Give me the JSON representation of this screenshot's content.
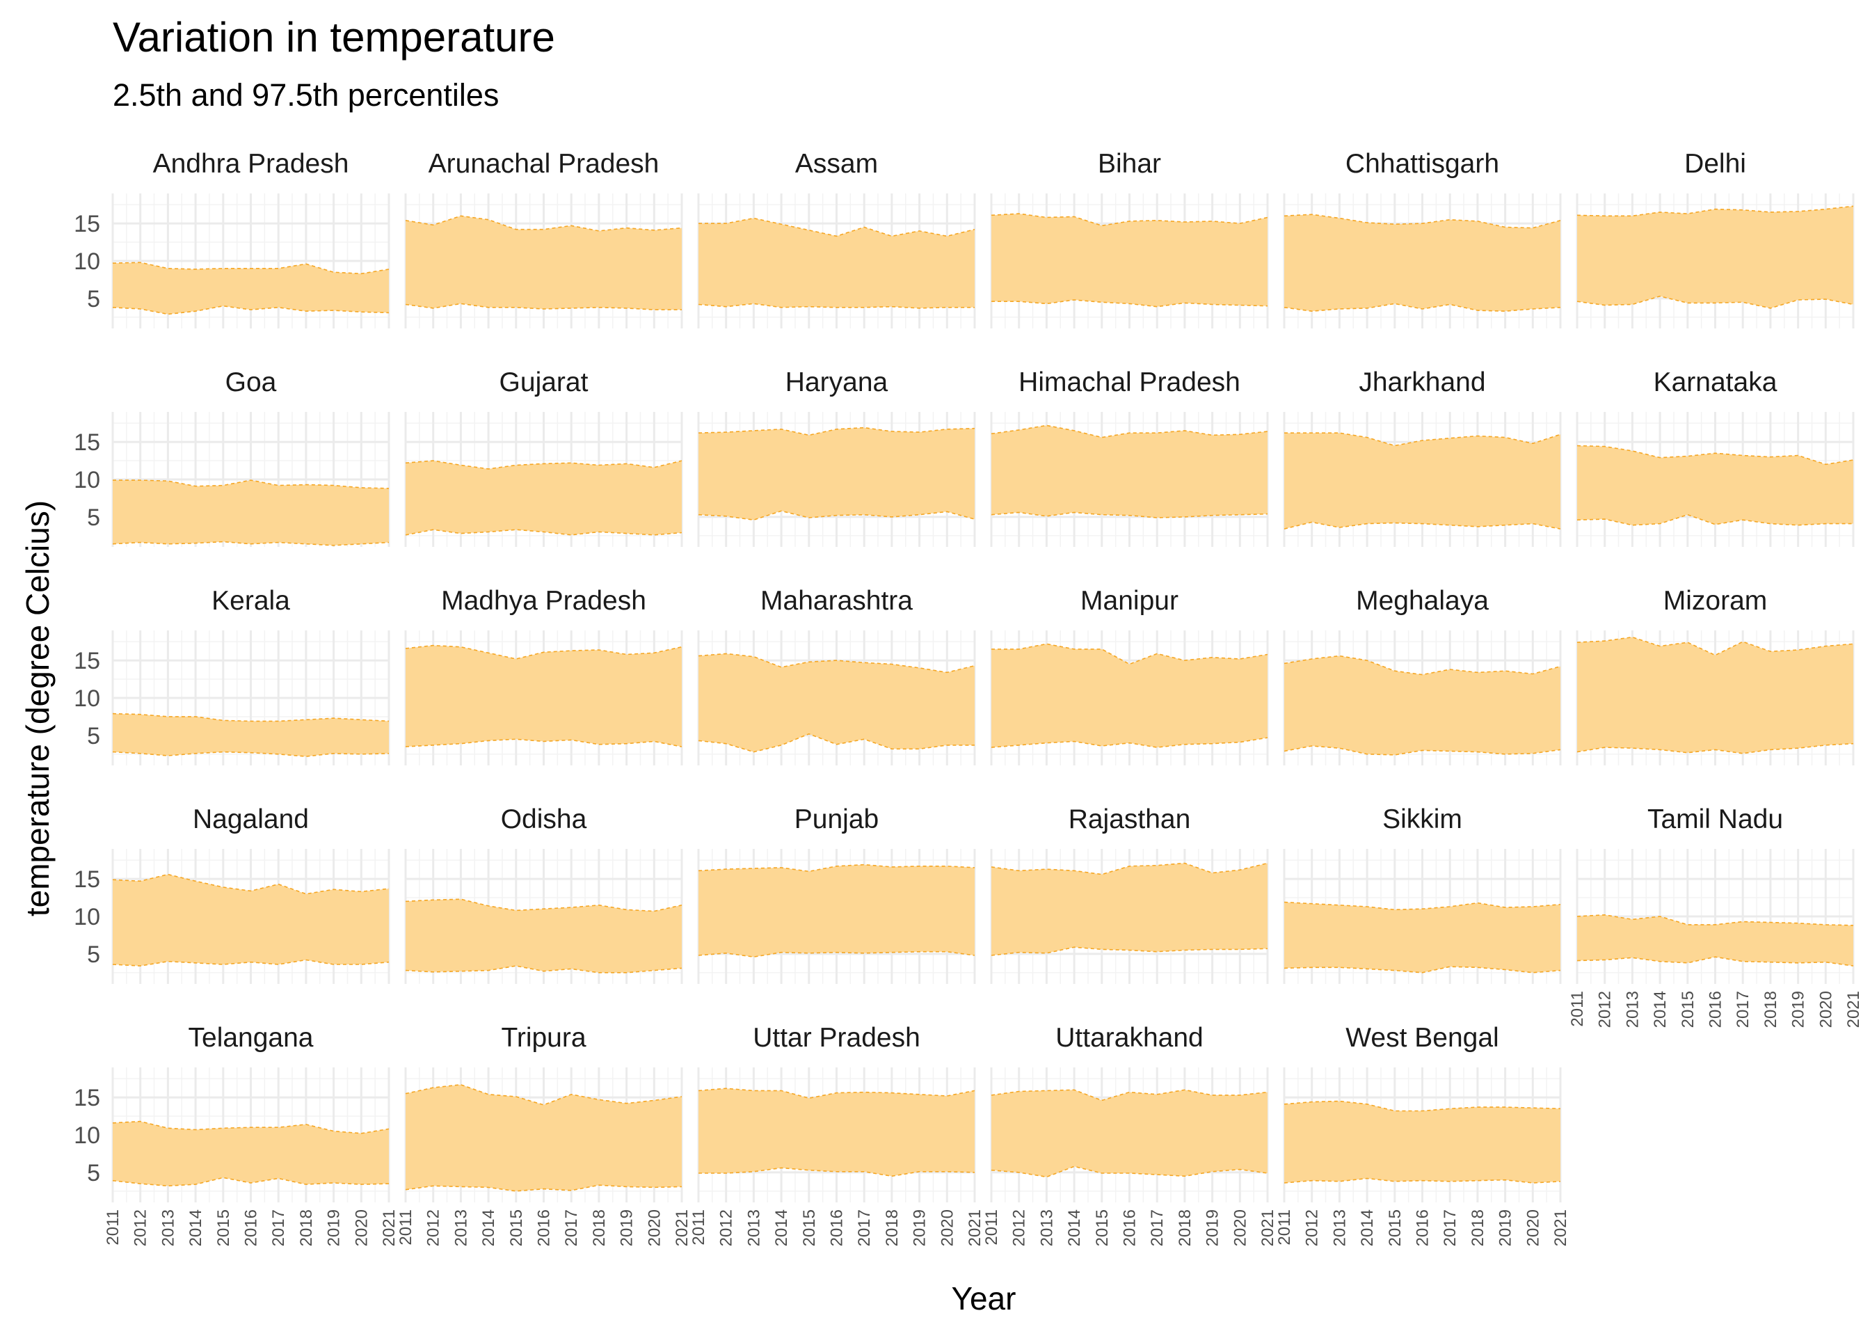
{
  "chart_data": {
    "type": "area",
    "title": "Variation in temperature",
    "subtitle": "2.5th and 97.5th percentiles",
    "xlabel": "Year",
    "ylabel": "temperature (degree Celcius)",
    "x": [
      2011,
      2012,
      2013,
      2014,
      2015,
      2016,
      2017,
      2018,
      2019,
      2020,
      2021
    ],
    "xlim": [
      2011,
      2021
    ],
    "ylim": [
      1,
      19
    ],
    "yticks": [
      5,
      10,
      15
    ],
    "ytick_labels": [
      "5",
      "10",
      "15"
    ],
    "xtick_labels": [
      "2011",
      "2012",
      "2013",
      "2014",
      "2015",
      "2016",
      "2017",
      "2018",
      "2019",
      "2020",
      "2021"
    ],
    "grid": true,
    "fill_color": "#fdd794",
    "line_color": "#f5a623",
    "facets": [
      {
        "name": "Andhra Pradesh",
        "upper": [
          9.7,
          9.8,
          9.0,
          8.9,
          9.0,
          9.0,
          9.0,
          9.6,
          8.5,
          8.3,
          8.9
        ],
        "lower": [
          3.8,
          3.6,
          2.9,
          3.3,
          4.0,
          3.5,
          3.8,
          3.3,
          3.4,
          3.2,
          3.1
        ]
      },
      {
        "name": "Arunachal Pradesh",
        "upper": [
          15.4,
          14.8,
          16.0,
          15.5,
          14.2,
          14.2,
          14.7,
          14.0,
          14.4,
          14.1,
          14.4
        ],
        "lower": [
          4.2,
          3.7,
          4.3,
          3.8,
          3.8,
          3.6,
          3.7,
          3.8,
          3.7,
          3.5,
          3.5
        ]
      },
      {
        "name": "Assam",
        "upper": [
          15.0,
          15.0,
          15.7,
          14.9,
          14.1,
          13.3,
          14.5,
          13.3,
          14.0,
          13.3,
          14.2
        ],
        "lower": [
          4.2,
          3.9,
          4.3,
          3.8,
          3.9,
          3.8,
          3.8,
          3.9,
          3.7,
          3.8,
          3.8
        ]
      },
      {
        "name": "Bihar",
        "upper": [
          16.1,
          16.3,
          15.8,
          15.9,
          14.7,
          15.3,
          15.4,
          15.2,
          15.3,
          15.0,
          15.8
        ],
        "lower": [
          4.6,
          4.6,
          4.3,
          4.8,
          4.5,
          4.3,
          3.9,
          4.4,
          4.2,
          4.1,
          4.0
        ]
      },
      {
        "name": "Chhattisgarh",
        "upper": [
          16.0,
          16.2,
          15.7,
          15.1,
          14.9,
          15.0,
          15.5,
          15.3,
          14.5,
          14.4,
          15.4
        ],
        "lower": [
          3.8,
          3.3,
          3.6,
          3.7,
          4.3,
          3.6,
          4.2,
          3.4,
          3.3,
          3.6,
          3.8
        ]
      },
      {
        "name": "Delhi",
        "upper": [
          16.1,
          16.0,
          16.0,
          16.5,
          16.3,
          16.9,
          16.8,
          16.5,
          16.6,
          16.9,
          17.3
        ],
        "lower": [
          4.6,
          4.1,
          4.2,
          5.3,
          4.4,
          4.4,
          4.5,
          3.7,
          4.8,
          4.9,
          4.2
        ]
      },
      {
        "name": "Goa",
        "upper": [
          9.9,
          9.9,
          9.8,
          9.1,
          9.2,
          9.9,
          9.2,
          9.3,
          9.2,
          8.9,
          8.8
        ],
        "lower": [
          1.4,
          1.6,
          1.4,
          1.5,
          1.7,
          1.4,
          1.6,
          1.4,
          1.2,
          1.4,
          1.6
        ]
      },
      {
        "name": "Gujarat",
        "upper": [
          12.2,
          12.5,
          11.9,
          11.4,
          11.9,
          12.1,
          12.2,
          11.9,
          12.1,
          11.6,
          12.5
        ],
        "lower": [
          2.6,
          3.3,
          2.8,
          3.0,
          3.3,
          3.0,
          2.6,
          3.0,
          2.8,
          2.6,
          2.9
        ]
      },
      {
        "name": "Haryana",
        "upper": [
          16.2,
          16.3,
          16.5,
          16.7,
          15.9,
          16.7,
          16.9,
          16.4,
          16.3,
          16.7,
          16.8
        ],
        "lower": [
          5.3,
          5.1,
          4.6,
          5.8,
          4.9,
          5.2,
          5.3,
          5.0,
          5.3,
          5.7,
          4.7
        ]
      },
      {
        "name": "Himachal Pradesh",
        "upper": [
          16.1,
          16.6,
          17.2,
          16.5,
          15.6,
          16.2,
          16.2,
          16.5,
          15.9,
          16.0,
          16.4
        ],
        "lower": [
          5.3,
          5.6,
          5.1,
          5.6,
          5.3,
          5.2,
          4.9,
          5.0,
          5.2,
          5.3,
          5.4
        ]
      },
      {
        "name": "Jharkhand",
        "upper": [
          16.2,
          16.2,
          16.2,
          15.6,
          14.5,
          15.2,
          15.5,
          15.8,
          15.6,
          14.8,
          16.0
        ],
        "lower": [
          3.4,
          4.3,
          3.6,
          4.1,
          4.2,
          4.1,
          3.9,
          3.7,
          3.9,
          4.1,
          3.4
        ]
      },
      {
        "name": "Karnataka",
        "upper": [
          14.5,
          14.4,
          13.8,
          12.9,
          13.1,
          13.5,
          13.2,
          13.0,
          13.2,
          12.0,
          12.6
        ],
        "lower": [
          4.6,
          4.7,
          3.9,
          4.1,
          5.3,
          4.0,
          4.6,
          4.1,
          3.9,
          4.1,
          4.1
        ]
      },
      {
        "name": "Kerala",
        "upper": [
          7.9,
          7.8,
          7.5,
          7.5,
          7.0,
          6.9,
          6.9,
          7.1,
          7.3,
          7.1,
          6.9
        ],
        "lower": [
          2.8,
          2.6,
          2.3,
          2.6,
          2.8,
          2.7,
          2.5,
          2.2,
          2.6,
          2.5,
          2.6
        ]
      },
      {
        "name": "Madhya Pradesh",
        "upper": [
          16.6,
          17.0,
          16.8,
          16.0,
          15.2,
          16.1,
          16.3,
          16.4,
          15.8,
          16.0,
          16.8
        ],
        "lower": [
          3.5,
          3.7,
          3.9,
          4.3,
          4.5,
          4.2,
          4.4,
          3.8,
          3.9,
          4.2,
          3.5
        ]
      },
      {
        "name": "Maharashtra",
        "upper": [
          15.6,
          15.9,
          15.5,
          14.1,
          14.8,
          15.0,
          14.7,
          14.5,
          14.0,
          13.4,
          14.3
        ],
        "lower": [
          4.3,
          3.9,
          2.8,
          3.7,
          5.2,
          3.8,
          4.5,
          3.2,
          3.2,
          3.7,
          3.7
        ]
      },
      {
        "name": "Manipur",
        "upper": [
          16.5,
          16.5,
          17.2,
          16.5,
          16.5,
          14.5,
          15.9,
          15.0,
          15.4,
          15.2,
          15.8
        ],
        "lower": [
          3.4,
          3.7,
          4.0,
          4.2,
          3.6,
          4.0,
          3.4,
          3.8,
          3.9,
          4.1,
          4.7
        ]
      },
      {
        "name": "Meghalaya",
        "upper": [
          14.6,
          15.2,
          15.6,
          15.0,
          13.6,
          13.1,
          13.8,
          13.4,
          13.6,
          13.2,
          14.2
        ],
        "lower": [
          2.9,
          3.6,
          3.3,
          2.5,
          2.4,
          3.0,
          2.9,
          2.8,
          2.5,
          2.6,
          3.1
        ]
      },
      {
        "name": "Mizoram",
        "upper": [
          17.4,
          17.6,
          18.1,
          16.9,
          17.4,
          15.7,
          17.5,
          16.2,
          16.4,
          16.9,
          17.2
        ],
        "lower": [
          2.8,
          3.4,
          3.3,
          3.1,
          2.7,
          3.1,
          2.6,
          3.1,
          3.3,
          3.7,
          3.9
        ]
      },
      {
        "name": "Nagaland",
        "upper": [
          14.9,
          14.7,
          15.6,
          14.7,
          13.9,
          13.4,
          14.3,
          13.0,
          13.6,
          13.3,
          13.7
        ],
        "lower": [
          3.6,
          3.4,
          4.0,
          3.8,
          3.6,
          3.9,
          3.6,
          4.2,
          3.6,
          3.6,
          3.9
        ]
      },
      {
        "name": "Odisha",
        "upper": [
          12.0,
          12.2,
          12.3,
          11.4,
          10.8,
          11.0,
          11.2,
          11.5,
          10.9,
          10.7,
          11.5
        ],
        "lower": [
          2.8,
          2.6,
          2.7,
          2.8,
          3.4,
          2.7,
          3.0,
          2.5,
          2.5,
          2.8,
          3.1
        ]
      },
      {
        "name": "Punjab",
        "upper": [
          16.1,
          16.3,
          16.4,
          16.5,
          16.0,
          16.7,
          16.9,
          16.6,
          16.7,
          16.7,
          16.5
        ],
        "lower": [
          4.8,
          5.1,
          4.6,
          5.2,
          5.1,
          5.2,
          5.1,
          5.2,
          5.3,
          5.3,
          4.8
        ]
      },
      {
        "name": "Rajasthan",
        "upper": [
          16.6,
          16.1,
          16.3,
          16.1,
          15.6,
          16.7,
          16.8,
          17.1,
          15.8,
          16.2,
          17.1
        ],
        "lower": [
          4.8,
          5.2,
          5.1,
          5.9,
          5.6,
          5.5,
          5.3,
          5.5,
          5.6,
          5.6,
          5.7
        ]
      },
      {
        "name": "Sikkim",
        "upper": [
          11.9,
          11.7,
          11.5,
          11.3,
          10.9,
          11.0,
          11.3,
          11.8,
          11.2,
          11.3,
          11.6
        ],
        "lower": [
          3.1,
          3.2,
          3.2,
          3.0,
          2.8,
          2.5,
          3.3,
          3.2,
          2.9,
          2.5,
          2.8
        ]
      },
      {
        "name": "Tamil Nadu",
        "upper": [
          10.0,
          10.2,
          9.6,
          10.0,
          8.9,
          8.9,
          9.3,
          9.2,
          9.1,
          8.9,
          8.8
        ],
        "lower": [
          4.1,
          4.2,
          4.5,
          4.0,
          3.8,
          4.6,
          4.0,
          3.9,
          3.8,
          3.9,
          3.4
        ]
      },
      {
        "name": "Telangana",
        "upper": [
          11.6,
          11.8,
          10.9,
          10.7,
          10.9,
          11.0,
          11.0,
          11.4,
          10.5,
          10.2,
          10.8
        ],
        "lower": [
          3.9,
          3.5,
          3.2,
          3.4,
          4.3,
          3.6,
          4.2,
          3.4,
          3.6,
          3.4,
          3.5
        ]
      },
      {
        "name": "Tripura",
        "upper": [
          15.5,
          16.3,
          16.7,
          15.4,
          15.1,
          14.0,
          15.4,
          14.7,
          14.2,
          14.6,
          15.1
        ],
        "lower": [
          2.7,
          3.2,
          3.1,
          3.0,
          2.5,
          2.8,
          2.6,
          3.3,
          3.1,
          3.0,
          3.1
        ]
      },
      {
        "name": "Uttar Pradesh",
        "upper": [
          15.9,
          16.2,
          15.9,
          15.9,
          14.9,
          15.6,
          15.7,
          15.6,
          15.4,
          15.2,
          15.9
        ],
        "lower": [
          4.9,
          4.9,
          5.1,
          5.6,
          5.3,
          5.1,
          5.1,
          4.5,
          5.1,
          5.1,
          5.0
        ]
      },
      {
        "name": "Uttarakhand",
        "upper": [
          15.3,
          15.8,
          15.9,
          16.0,
          14.6,
          15.7,
          15.4,
          16.0,
          15.3,
          15.3,
          15.7
        ],
        "lower": [
          5.3,
          5.0,
          4.4,
          5.8,
          4.9,
          4.9,
          4.7,
          4.5,
          5.1,
          5.4,
          4.9
        ]
      },
      {
        "name": "West Bengal",
        "upper": [
          14.1,
          14.4,
          14.5,
          14.1,
          13.2,
          13.2,
          13.5,
          13.7,
          13.7,
          13.6,
          13.5
        ],
        "lower": [
          3.6,
          3.9,
          3.8,
          4.2,
          3.8,
          3.9,
          3.8,
          3.9,
          4.0,
          3.6,
          3.8
        ]
      }
    ]
  }
}
